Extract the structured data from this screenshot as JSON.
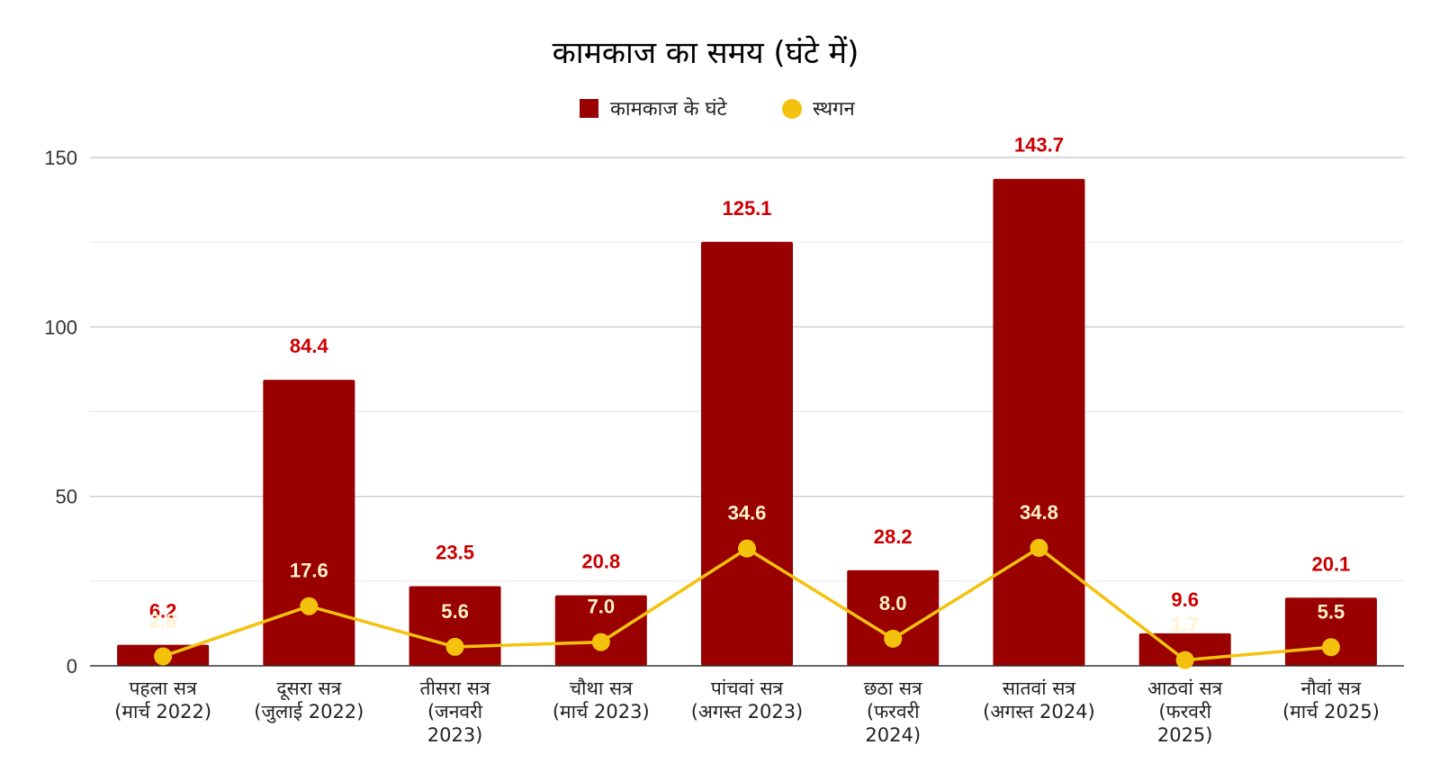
{
  "chart_data": {
    "type": "bar",
    "title": "कामकाज का समय (घंटे में)",
    "xlabel": "",
    "ylabel": "",
    "ylim": [
      0,
      150
    ],
    "yticks": [
      0,
      50,
      100,
      150
    ],
    "grid": true,
    "legend_position": "top",
    "categories": [
      [
        "पहला सत्र",
        "(मार्च 2022)"
      ],
      [
        "दूसरा सत्र",
        "(जुलाई 2022)"
      ],
      [
        "तीसरा सत्र",
        "(जनवरी",
        "2023)"
      ],
      [
        "चौथा सत्र",
        "(मार्च 2023)"
      ],
      [
        "पांचवां सत्र",
        "(अगस्त 2023)"
      ],
      [
        "छठा सत्र",
        "(फरवरी",
        "2024)"
      ],
      [
        "सातवां सत्र",
        "(अगस्त 2024)"
      ],
      [
        "आठवां सत्र",
        "(फरवरी",
        "2025)"
      ],
      [
        "नौवां सत्र",
        "(मार्च 2025)"
      ]
    ],
    "series": [
      {
        "name": "कामकाज के घंटे",
        "type": "bar",
        "color": "#990000",
        "label_color": "#cc0000",
        "values": [
          6.2,
          84.4,
          23.5,
          20.8,
          125.1,
          28.2,
          143.7,
          9.6,
          20.1
        ],
        "labels": [
          "6.2",
          "84.4",
          "23.5",
          "20.8",
          "125.1",
          "28.2",
          "143.7",
          "9.6",
          "20.1"
        ]
      },
      {
        "name": "स्थगन",
        "type": "line",
        "color": "#f4c20d",
        "label_color": "#fff2cc",
        "values": [
          2.8,
          17.6,
          5.6,
          7.0,
          34.6,
          8.0,
          34.8,
          1.7,
          5.5
        ],
        "labels": [
          "2.8",
          "17.6",
          "5.6",
          "7.0",
          "34.6",
          "8.0",
          "34.8",
          "1.7",
          "5.5"
        ]
      }
    ]
  }
}
